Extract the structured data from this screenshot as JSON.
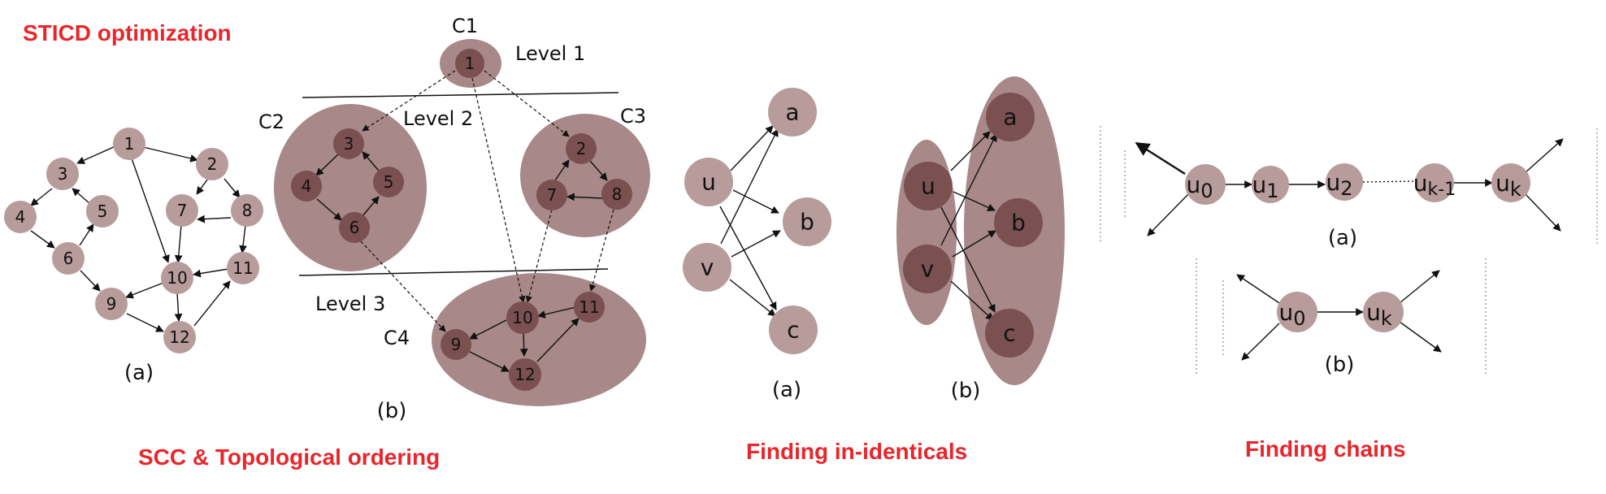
{
  "titles": {
    "stico": "STICD optimization",
    "scc": "SCC & Topological ordering",
    "identicals": "Finding in-identicals",
    "chains": "Finding chains"
  },
  "colors": {
    "title_red": "#e8262b",
    "node_light": "#b89b9b",
    "node_dark": "#7a5050",
    "cluster": "#a88888"
  },
  "p1": {
    "caption": "(a)",
    "nodes": [
      "1",
      "2",
      "3",
      "4",
      "5",
      "6",
      "7",
      "8",
      "9",
      "10",
      "11",
      "12"
    ]
  },
  "p2": {
    "caption": "(b)",
    "clusters": [
      "C1",
      "C2",
      "C3",
      "C4"
    ],
    "levels": [
      "Level 1",
      "Level 2",
      "Level 3"
    ],
    "nodes": [
      "1",
      "2",
      "3",
      "4",
      "5",
      "6",
      "7",
      "8",
      "9",
      "10",
      "11",
      "12"
    ]
  },
  "p3": {
    "caption_a": "(a)",
    "caption_b": "(b)",
    "nodes": [
      "u",
      "v",
      "a",
      "b",
      "c"
    ]
  },
  "p4": {
    "caption_a": "(a)",
    "caption_b": "(b)",
    "chain_a": [
      {
        "base": "u",
        "sub": "0"
      },
      {
        "base": "u",
        "sub": "1"
      },
      {
        "base": "u",
        "sub": "2"
      },
      {
        "base": "u",
        "sub": "k-1"
      },
      {
        "base": "u",
        "sub": "k"
      }
    ],
    "chain_b": [
      {
        "base": "u",
        "sub": "0"
      },
      {
        "base": "u",
        "sub": "k"
      }
    ]
  }
}
